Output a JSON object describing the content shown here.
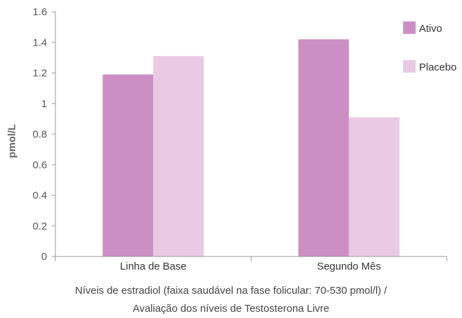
{
  "chart_data": {
    "type": "bar",
    "categories": [
      "Linha de Base",
      "Segundo Mês"
    ],
    "series": [
      {
        "name": "Ativo",
        "values": [
          1.19,
          1.42
        ],
        "color": "#cc8fc3"
      },
      {
        "name": "Placebo",
        "values": [
          1.31,
          0.91
        ],
        "color": "#e9cae2"
      }
    ],
    "ylabel": "pmol/L",
    "ylim": [
      0,
      1.6
    ],
    "yticks": [
      "0",
      "0.2",
      "0.4",
      "0.6",
      "0.8",
      "1",
      "1.2",
      "1.4",
      "1.6"
    ],
    "grid": false,
    "legend_position": "top-right"
  },
  "caption": {
    "line1": "Níveis de estradiol (faixa saudável na fase folicular: 70-530 pmol/l) /",
    "line2": "Avaliação dos níveis de Testosterona Livre"
  }
}
